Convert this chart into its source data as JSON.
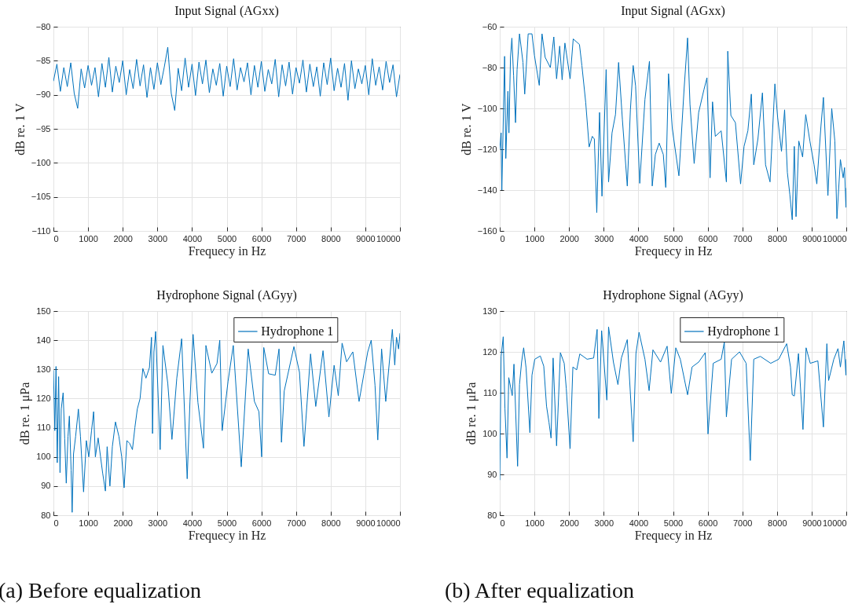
{
  "chart_data": [
    {
      "type": "line",
      "title": "Input Signal (AGxx)",
      "xlabel": "Frequecy in Hz",
      "ylabel": "dB re. 1 V",
      "xlim": [
        0,
        10000
      ],
      "xticks": [
        0,
        1000,
        2000,
        3000,
        4000,
        5000,
        6000,
        7000,
        8000,
        9000,
        10000
      ],
      "ylim": [
        -110,
        -80
      ],
      "yticks": [
        -110,
        -105,
        -100,
        -95,
        -90,
        -85,
        -80
      ],
      "grid": true,
      "x": [
        0,
        100,
        200,
        300,
        400,
        500,
        600,
        700,
        800,
        900,
        1000,
        1100,
        1200,
        1300,
        1400,
        1500,
        1600,
        1700,
        1800,
        1900,
        2000,
        2100,
        2200,
        2300,
        2400,
        2500,
        2600,
        2700,
        2800,
        2900,
        3000,
        3100,
        3200,
        3300,
        3400,
        3500,
        3600,
        3700,
        3800,
        3900,
        4000,
        4100,
        4200,
        4300,
        4400,
        4500,
        4600,
        4700,
        4800,
        4900,
        5000,
        5100,
        5200,
        5300,
        5400,
        5500,
        5600,
        5700,
        5800,
        5900,
        6000,
        6100,
        6200,
        6300,
        6400,
        6500,
        6600,
        6700,
        6800,
        6900,
        7000,
        7100,
        7200,
        7300,
        7400,
        7500,
        7600,
        7700,
        7800,
        7900,
        8000,
        8100,
        8200,
        8300,
        8400,
        8500,
        8600,
        8700,
        8800,
        8900,
        9000,
        9100,
        9200,
        9300,
        9400,
        9500,
        9600,
        9700,
        9800,
        9900,
        10000
      ],
      "series": [
        {
          "color": "#0072bd",
          "values": [
            -88,
            -85.5,
            -89.5,
            -86,
            -88.8,
            -85.3,
            -89.8,
            -92,
            -86.2,
            -89,
            -85.7,
            -88.6,
            -86,
            -90.3,
            -85.4,
            -88.9,
            -84.5,
            -89.6,
            -85.8,
            -88.2,
            -85,
            -90,
            -86.3,
            -89.1,
            -84.8,
            -88.7,
            -85.6,
            -90.4,
            -86,
            -89.2,
            -85.3,
            -88.5,
            -85.9,
            -83,
            -89.8,
            -92.3,
            -86.1,
            -89.4,
            -84.6,
            -88.9,
            -85.5,
            -90.1,
            -85.2,
            -88.4,
            -84.9,
            -89.7,
            -86.2,
            -88.6,
            -85.4,
            -90.2,
            -85.8,
            -88.8,
            -84.7,
            -89.3,
            -86,
            -88.1,
            -85.3,
            -90,
            -85.7,
            -88.9,
            -85.1,
            -89.5,
            -86.3,
            -88.4,
            -84.8,
            -90.3,
            -85.6,
            -88.7,
            -85.2,
            -89.9,
            -86,
            -88.3,
            -84.9,
            -89.6,
            -85.5,
            -88.8,
            -85.9,
            -90.2,
            -85.3,
            -88.5,
            -84.6,
            -89.4,
            -86.1,
            -88.9,
            -85.4,
            -90.8,
            -85,
            -89.1,
            -86.2,
            -88.4,
            -85.7,
            -90,
            -84.7,
            -88.6,
            -85.9,
            -89.3,
            -85.1,
            -88.2,
            -85.6,
            -90.3,
            -87
          ]
        }
      ]
    },
    {
      "type": "line",
      "title": "Input Signal (AGxx)",
      "xlabel": "Frequecy in Hz",
      "ylabel": "dB re. 1 V",
      "xlim": [
        0,
        10000
      ],
      "xticks": [
        0,
        1000,
        2000,
        3000,
        4000,
        5000,
        6000,
        7000,
        8000,
        9000,
        10000
      ],
      "ylim": [
        -160,
        -60
      ],
      "yticks": [
        -160,
        -140,
        -120,
        -100,
        -80,
        -60
      ],
      "grid": true,
      "x": [
        0,
        40,
        60,
        140,
        175,
        235,
        265,
        310,
        350,
        400,
        455,
        500,
        570,
        670,
        720,
        820,
        930,
        1000,
        1140,
        1220,
        1310,
        1460,
        1560,
        1640,
        1730,
        1800,
        1880,
        2030,
        2120,
        2300,
        2370,
        2480,
        2580,
        2670,
        2730,
        2800,
        2880,
        2950,
        3070,
        3140,
        3240,
        3340,
        3430,
        3540,
        3680,
        3770,
        3850,
        3920,
        4040,
        4190,
        4320,
        4400,
        4490,
        4600,
        4720,
        4790,
        4870,
        4980,
        5170,
        5320,
        5420,
        5490,
        5610,
        5740,
        5890,
        5980,
        6070,
        6140,
        6220,
        6390,
        6540,
        6580,
        6670,
        6800,
        6950,
        7050,
        7160,
        7260,
        7330,
        7450,
        7580,
        7670,
        7800,
        7940,
        8020,
        8130,
        8220,
        8300,
        8370,
        8440,
        8500,
        8550,
        8630,
        8740,
        8830,
        8950,
        9070,
        9150,
        9270,
        9340,
        9470,
        9580,
        9670,
        9730,
        9830,
        9910,
        9950,
        9990,
        10000
      ],
      "series": [
        {
          "color": "#0072bd",
          "values": [
            -120,
            -112,
            -140,
            -74.5,
            -124.5,
            -91.6,
            -112,
            -75,
            -65.6,
            -84,
            -107,
            -81,
            -63.5,
            -77.5,
            -93,
            -63.5,
            -63.5,
            -74,
            -88.7,
            -63.5,
            -75,
            -80,
            -65,
            -85.5,
            -69.5,
            -86,
            -68,
            -85.5,
            -66,
            -68.7,
            -79,
            -97,
            -118.9,
            -113.7,
            -115,
            -151,
            -102,
            -143,
            -81,
            -136,
            -112,
            -103,
            -77.5,
            -105.7,
            -138,
            -100.7,
            -79,
            -89,
            -136.7,
            -95.6,
            -76.9,
            -138,
            -122.6,
            -117,
            -122.6,
            -138.7,
            -83,
            -110,
            -133,
            -90.4,
            -65.5,
            -98,
            -127,
            -102,
            -91,
            -85,
            -134,
            -96.8,
            -113.7,
            -111,
            -136,
            -72,
            -103.5,
            -107,
            -137,
            -118.6,
            -111,
            -93,
            -127.6,
            -115,
            -92.4,
            -127.6,
            -136,
            -88,
            -104.6,
            -121,
            -100.7,
            -131.4,
            -142,
            -154.5,
            -118.6,
            -153,
            -116,
            -123.8,
            -103,
            -116,
            -127.6,
            -137,
            -108.5,
            -94.6,
            -142.7,
            -100,
            -116,
            -154,
            -125,
            -134,
            -129,
            -148.5,
            -139
          ]
        }
      ]
    },
    {
      "type": "line",
      "title": "Hydrophone Signal (AGyy)",
      "xlabel": "Frequecy in Hz",
      "ylabel": "dB re. 1 μPa",
      "xlim": [
        0,
        10000
      ],
      "xticks": [
        0,
        1000,
        2000,
        3000,
        4000,
        5000,
        6000,
        7000,
        8000,
        9000,
        10000
      ],
      "ylim": [
        80,
        150
      ],
      "yticks": [
        80,
        90,
        100,
        110,
        120,
        130,
        140,
        150
      ],
      "grid": true,
      "legend": "top right",
      "annotations": [
        "(a) Before equalization"
      ],
      "x": [
        0,
        40,
        75,
        110,
        150,
        190,
        225,
        280,
        325,
        370,
        420,
        460,
        510,
        540,
        580,
        640,
        720,
        780,
        870,
        950,
        1020,
        1100,
        1160,
        1210,
        1290,
        1360,
        1420,
        1500,
        1550,
        1630,
        1700,
        1790,
        1890,
        1970,
        2040,
        2120,
        2200,
        2280,
        2350,
        2420,
        2500,
        2580,
        2670,
        2770,
        2830,
        2860,
        2900,
        2950,
        3080,
        3160,
        3300,
        3420,
        3560,
        3700,
        3860,
        3940,
        4030,
        4170,
        4330,
        4400,
        4570,
        4720,
        4800,
        4870,
        5040,
        5190,
        5420,
        5620,
        5800,
        5930,
        6010,
        6070,
        6210,
        6400,
        6510,
        6580,
        6660,
        6940,
        7100,
        7230,
        7420,
        7570,
        7780,
        7950,
        8100,
        8220,
        8330,
        8460,
        8640,
        8820,
        9070,
        9170,
        9280,
        9360,
        9470,
        9590,
        9780,
        9850,
        9900,
        9960,
        10000
      ],
      "series": [
        {
          "name": "Hydrophone 1",
          "color": "#0072bd",
          "values": [
            129.7,
            109,
            131,
            98,
            127.5,
            94.6,
            116.4,
            122,
            106.3,
            91,
            107,
            114,
            95.5,
            81,
            101,
            107,
            116.4,
            107,
            88,
            105.6,
            100,
            109,
            115.5,
            100,
            106.5,
            100,
            94.5,
            88.3,
            103.5,
            90,
            103.5,
            112,
            107,
            100,
            89.4,
            105.6,
            104.6,
            102.5,
            110,
            116.4,
            120,
            130.3,
            127,
            130.6,
            141,
            108,
            136,
            143,
            102.5,
            138.2,
            125.2,
            106,
            127,
            140.5,
            92.5,
            119,
            142,
            118.6,
            103,
            138.2,
            128.7,
            132,
            140,
            109,
            126,
            138.2,
            96.6,
            137,
            119,
            115.5,
            100,
            137.5,
            128.5,
            128,
            137,
            105,
            122.6,
            137.8,
            129,
            103.6,
            135.3,
            117.3,
            136.4,
            113.7,
            131.4,
            121,
            139,
            132.6,
            136,
            119,
            136,
            140,
            124.6,
            105.8,
            137,
            119,
            143.7,
            131.5,
            141,
            137,
            142.4
          ]
        }
      ]
    },
    {
      "type": "line",
      "title": "Hydrophone Signal (AGyy)",
      "xlabel": "Frequecy in Hz",
      "ylabel": "dB re. 1 μPa",
      "xlim": [
        0,
        10000
      ],
      "xticks": [
        0,
        1000,
        2000,
        3000,
        4000,
        5000,
        6000,
        7000,
        8000,
        9000,
        10000
      ],
      "ylim": [
        80,
        130
      ],
      "yticks": [
        80,
        90,
        100,
        110,
        120,
        130
      ],
      "grid": true,
      "legend": "top right",
      "annotations": [
        "(b) After equalization"
      ],
      "x": [
        0,
        40,
        100,
        150,
        210,
        260,
        360,
        410,
        515,
        570,
        630,
        690,
        760,
        870,
        930,
        1010,
        1170,
        1270,
        1350,
        1420,
        1480,
        1540,
        1640,
        1750,
        1860,
        1920,
        2030,
        2110,
        2220,
        2310,
        2520,
        2710,
        2810,
        2860,
        2940,
        3090,
        3140,
        3280,
        3410,
        3510,
        3680,
        3850,
        3930,
        4020,
        4190,
        4310,
        4420,
        4640,
        4830,
        4950,
        5080,
        5210,
        5420,
        5550,
        5740,
        5930,
        6010,
        6160,
        6390,
        6480,
        6540,
        6690,
        6920,
        7110,
        7230,
        7330,
        7520,
        7820,
        8050,
        8280,
        8390,
        8440,
        8500,
        8620,
        8750,
        8840,
        8960,
        9180,
        9340,
        9440,
        9490,
        9640,
        9760,
        9830,
        9930,
        9990,
        10000
      ],
      "series": [
        {
          "name": "Hydrophone 1",
          "color": "#0072bd",
          "values": [
            88.6,
            118.9,
            123.7,
            106,
            94,
            113.7,
            109.3,
            117,
            92,
            112,
            117.5,
            121,
            116,
            100.2,
            114.3,
            118.2,
            119,
            116.5,
            106.7,
            102.8,
            98.9,
            118.5,
            97,
            119.8,
            117.2,
            111,
            96.3,
            116.3,
            115.6,
            119.5,
            118.2,
            118.5,
            125.5,
            103.7,
            125.2,
            108.2,
            126.1,
            117.5,
            112,
            118.5,
            123,
            98,
            119.6,
            124.8,
            118.2,
            110.5,
            120.5,
            117.5,
            121.4,
            109.8,
            121,
            118.2,
            109.5,
            116.3,
            117.5,
            119.8,
            99.9,
            117.2,
            118.2,
            122.4,
            104.1,
            118.2,
            120,
            117.2,
            93.4,
            118.2,
            118.9,
            117.2,
            118.2,
            122,
            116.3,
            109.5,
            109.2,
            119.6,
            101,
            121,
            117.2,
            117.8,
            101.6,
            122,
            113,
            118.2,
            120.8,
            116.3,
            122.7,
            114.3,
            118.2
          ]
        }
      ]
    }
  ]
}
